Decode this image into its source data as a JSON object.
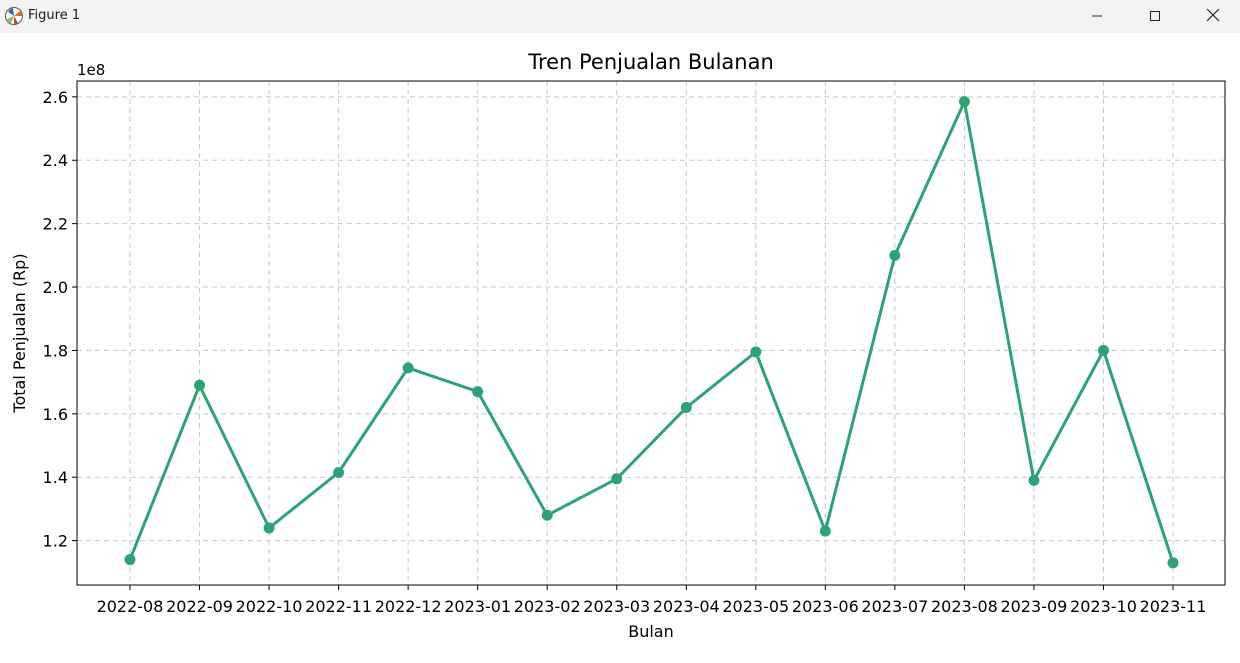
{
  "window": {
    "title": "Figure 1",
    "icons": {
      "app": "matplotlib-logo-icon",
      "minimize": "minimize-icon",
      "maximize": "maximize-icon",
      "close": "close-icon"
    }
  },
  "chart_data": {
    "type": "line",
    "title": "Tren Penjualan Bulanan",
    "xlabel": "Bulan",
    "ylabel": "Total Penjualan (Rp)",
    "y_offset_label": "1e8",
    "y_scale_factor": 100000000,
    "categories": [
      "2022-08",
      "2022-09",
      "2022-10",
      "2022-11",
      "2022-12",
      "2023-01",
      "2023-02",
      "2023-03",
      "2023-04",
      "2023-05",
      "2023-06",
      "2023-07",
      "2023-08",
      "2023-09",
      "2023-10",
      "2023-11"
    ],
    "series": [
      {
        "values": [
          114000000,
          169000000,
          124000000,
          141500000,
          174500000,
          167000000,
          128000000,
          139500000,
          162000000,
          179500000,
          123000000,
          210000000,
          258500000,
          139000000,
          180000000,
          113000000
        ],
        "color": "#2ca375",
        "marker": "circle"
      }
    ],
    "yticks": [
      1.2,
      1.4,
      1.6,
      1.8,
      2.0,
      2.2,
      2.4,
      2.6
    ],
    "ytick_labels": [
      "1.2",
      "1.4",
      "1.6",
      "1.8",
      "2.0",
      "2.2",
      "2.4",
      "2.6"
    ],
    "ylim": [
      1.06,
      2.65
    ],
    "grid": true,
    "grid_style": "dashed",
    "grid_color": "#c8c8c8",
    "legend": "none"
  }
}
